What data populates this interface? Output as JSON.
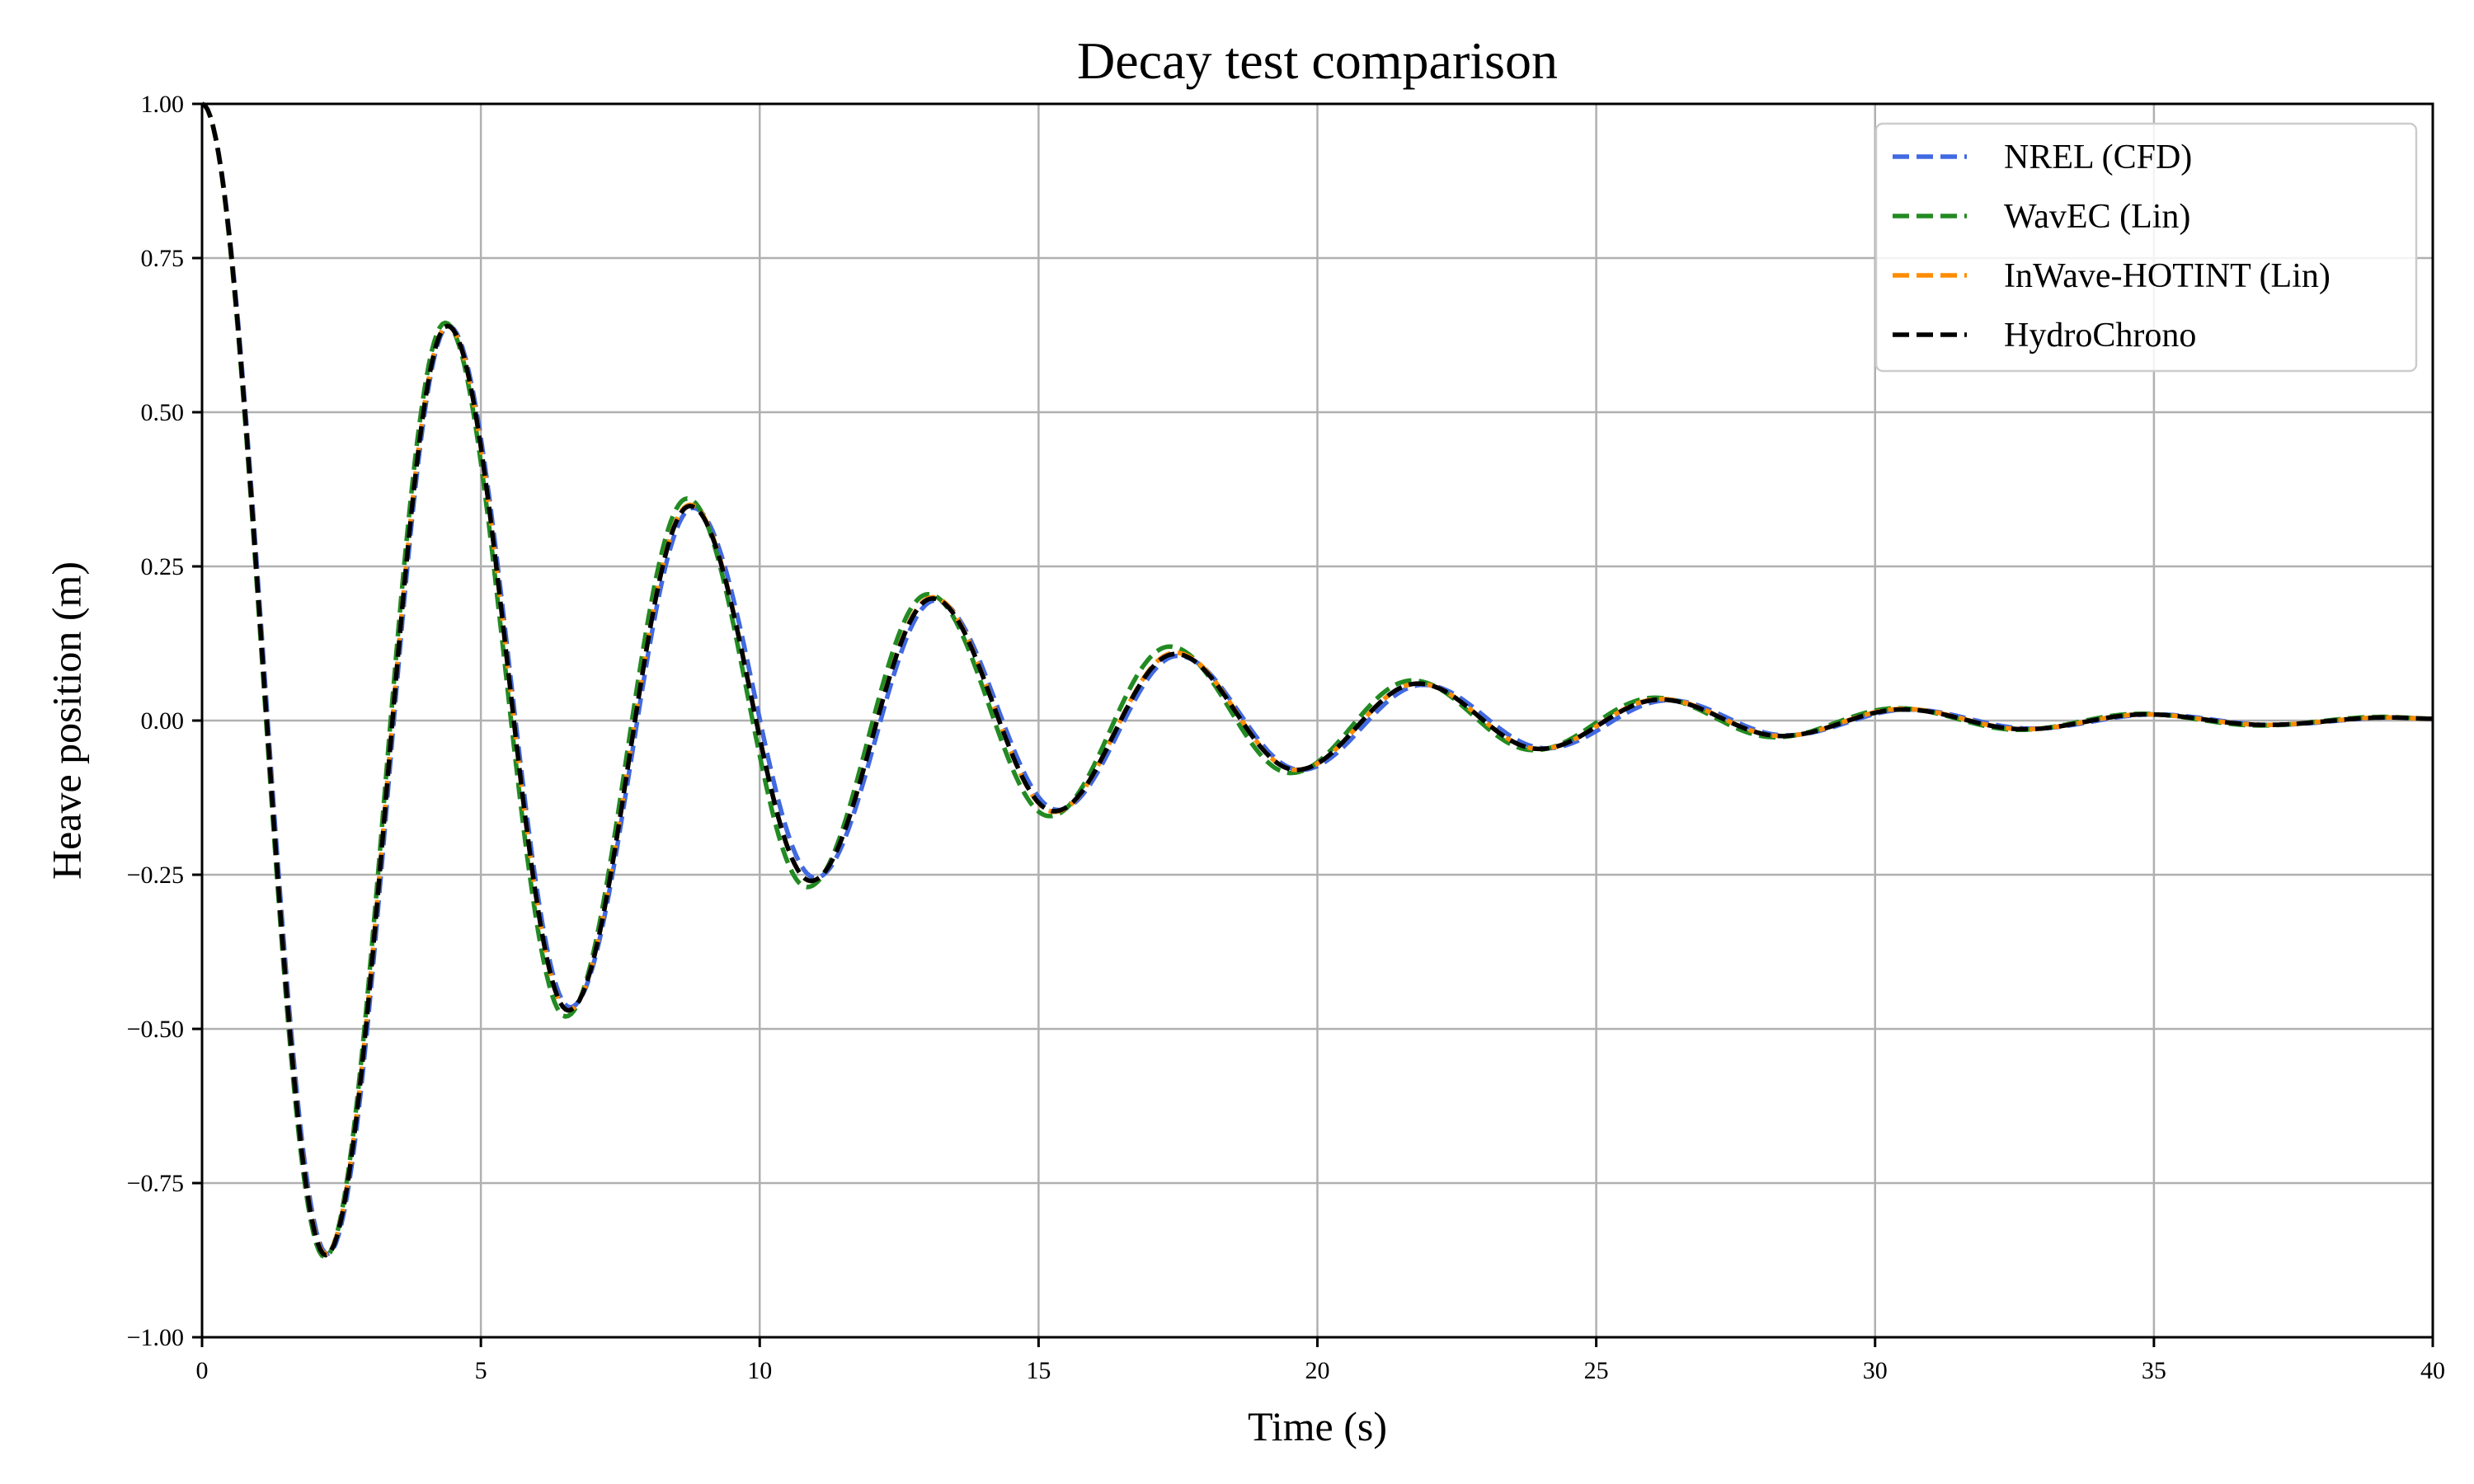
{
  "chart_data": {
    "type": "line",
    "title": "Decay test comparison",
    "xlabel": "Time (s)",
    "ylabel": "Heave position (m)",
    "xlim": [
      0,
      40
    ],
    "ylim": [
      -1.0,
      1.0
    ],
    "grid": true,
    "legend_position": "top-right",
    "x_ticks": [
      0,
      5,
      10,
      15,
      20,
      25,
      30,
      35,
      40
    ],
    "x_tick_labels": [
      "0",
      "5",
      "10",
      "15",
      "20",
      "25",
      "30",
      "35",
      "40"
    ],
    "y_ticks": [
      -1.0,
      -0.75,
      -0.5,
      -0.25,
      0.0,
      0.25,
      0.5,
      0.75,
      1.0
    ],
    "y_tick_labels": [
      "−1.00",
      "−0.75",
      "−0.50",
      "−0.25",
      "0.00",
      "0.25",
      "0.50",
      "0.75",
      "1.00"
    ],
    "series": [
      {
        "name": "NREL (CFD)",
        "color": "#4169e1",
        "dash": "dashed",
        "points": [
          [
            0,
            1.0
          ],
          [
            2.25,
            -0.865
          ],
          [
            4.42,
            0.64
          ],
          [
            6.6,
            -0.465
          ],
          [
            8.8,
            0.345
          ],
          [
            11.0,
            -0.255
          ],
          [
            13.15,
            0.195
          ],
          [
            15.35,
            -0.145
          ],
          [
            17.5,
            0.105
          ],
          [
            19.7,
            -0.08
          ],
          [
            21.9,
            0.058
          ],
          [
            24.1,
            -0.045
          ],
          [
            26.3,
            0.033
          ],
          [
            28.4,
            -0.024
          ],
          [
            30.6,
            0.018
          ],
          [
            32.8,
            -0.013
          ],
          [
            35.0,
            0.01
          ],
          [
            37.1,
            -0.007
          ],
          [
            39.3,
            0.005
          ],
          [
            40.0,
            0.003
          ]
        ]
      },
      {
        "name": "WavEC (Lin)",
        "color": "#228b22",
        "dash": "dashed",
        "points": [
          [
            0,
            1.0
          ],
          [
            2.2,
            -0.87
          ],
          [
            4.36,
            0.645
          ],
          [
            6.52,
            -0.48
          ],
          [
            8.7,
            0.36
          ],
          [
            10.85,
            -0.27
          ],
          [
            13.02,
            0.205
          ],
          [
            15.2,
            -0.155
          ],
          [
            17.35,
            0.12
          ],
          [
            19.52,
            -0.085
          ],
          [
            21.7,
            0.065
          ],
          [
            23.88,
            -0.048
          ],
          [
            26.05,
            0.037
          ],
          [
            28.2,
            -0.027
          ],
          [
            30.4,
            0.02
          ],
          [
            32.58,
            -0.015
          ],
          [
            34.75,
            0.011
          ],
          [
            36.9,
            -0.008
          ],
          [
            39.1,
            0.006
          ],
          [
            40.0,
            0.003
          ]
        ]
      },
      {
        "name": "InWave-HOTINT (Lin)",
        "color": "#ff8c00",
        "dash": "dashed",
        "points": [
          [
            0,
            1.0
          ],
          [
            2.22,
            -0.865
          ],
          [
            4.4,
            0.64
          ],
          [
            6.57,
            -0.47
          ],
          [
            8.75,
            0.35
          ],
          [
            10.92,
            -0.26
          ],
          [
            13.1,
            0.2
          ],
          [
            15.28,
            -0.148
          ],
          [
            17.45,
            0.11
          ],
          [
            19.62,
            -0.08
          ],
          [
            21.8,
            0.06
          ],
          [
            23.98,
            -0.046
          ],
          [
            26.15,
            0.035
          ],
          [
            28.32,
            -0.025
          ],
          [
            30.5,
            0.019
          ],
          [
            32.68,
            -0.014
          ],
          [
            34.85,
            0.01
          ],
          [
            37.0,
            -0.007
          ],
          [
            39.2,
            0.005
          ],
          [
            40.0,
            0.003
          ]
        ]
      },
      {
        "name": "HydroChrono",
        "color": "#000000",
        "dash": "dashed",
        "points": [
          [
            0,
            1.0
          ],
          [
            2.22,
            -0.867
          ],
          [
            4.4,
            0.64
          ],
          [
            6.57,
            -0.47
          ],
          [
            8.75,
            0.348
          ],
          [
            10.92,
            -0.26
          ],
          [
            13.1,
            0.198
          ],
          [
            15.28,
            -0.147
          ],
          [
            17.45,
            0.108
          ],
          [
            19.62,
            -0.08
          ],
          [
            21.8,
            0.06
          ],
          [
            23.98,
            -0.046
          ],
          [
            26.15,
            0.034
          ],
          [
            28.32,
            -0.025
          ],
          [
            30.5,
            0.018
          ],
          [
            32.68,
            -0.014
          ],
          [
            34.85,
            0.01
          ],
          [
            37.0,
            -0.007
          ],
          [
            39.2,
            0.005
          ],
          [
            40.0,
            0.003
          ]
        ]
      }
    ]
  }
}
